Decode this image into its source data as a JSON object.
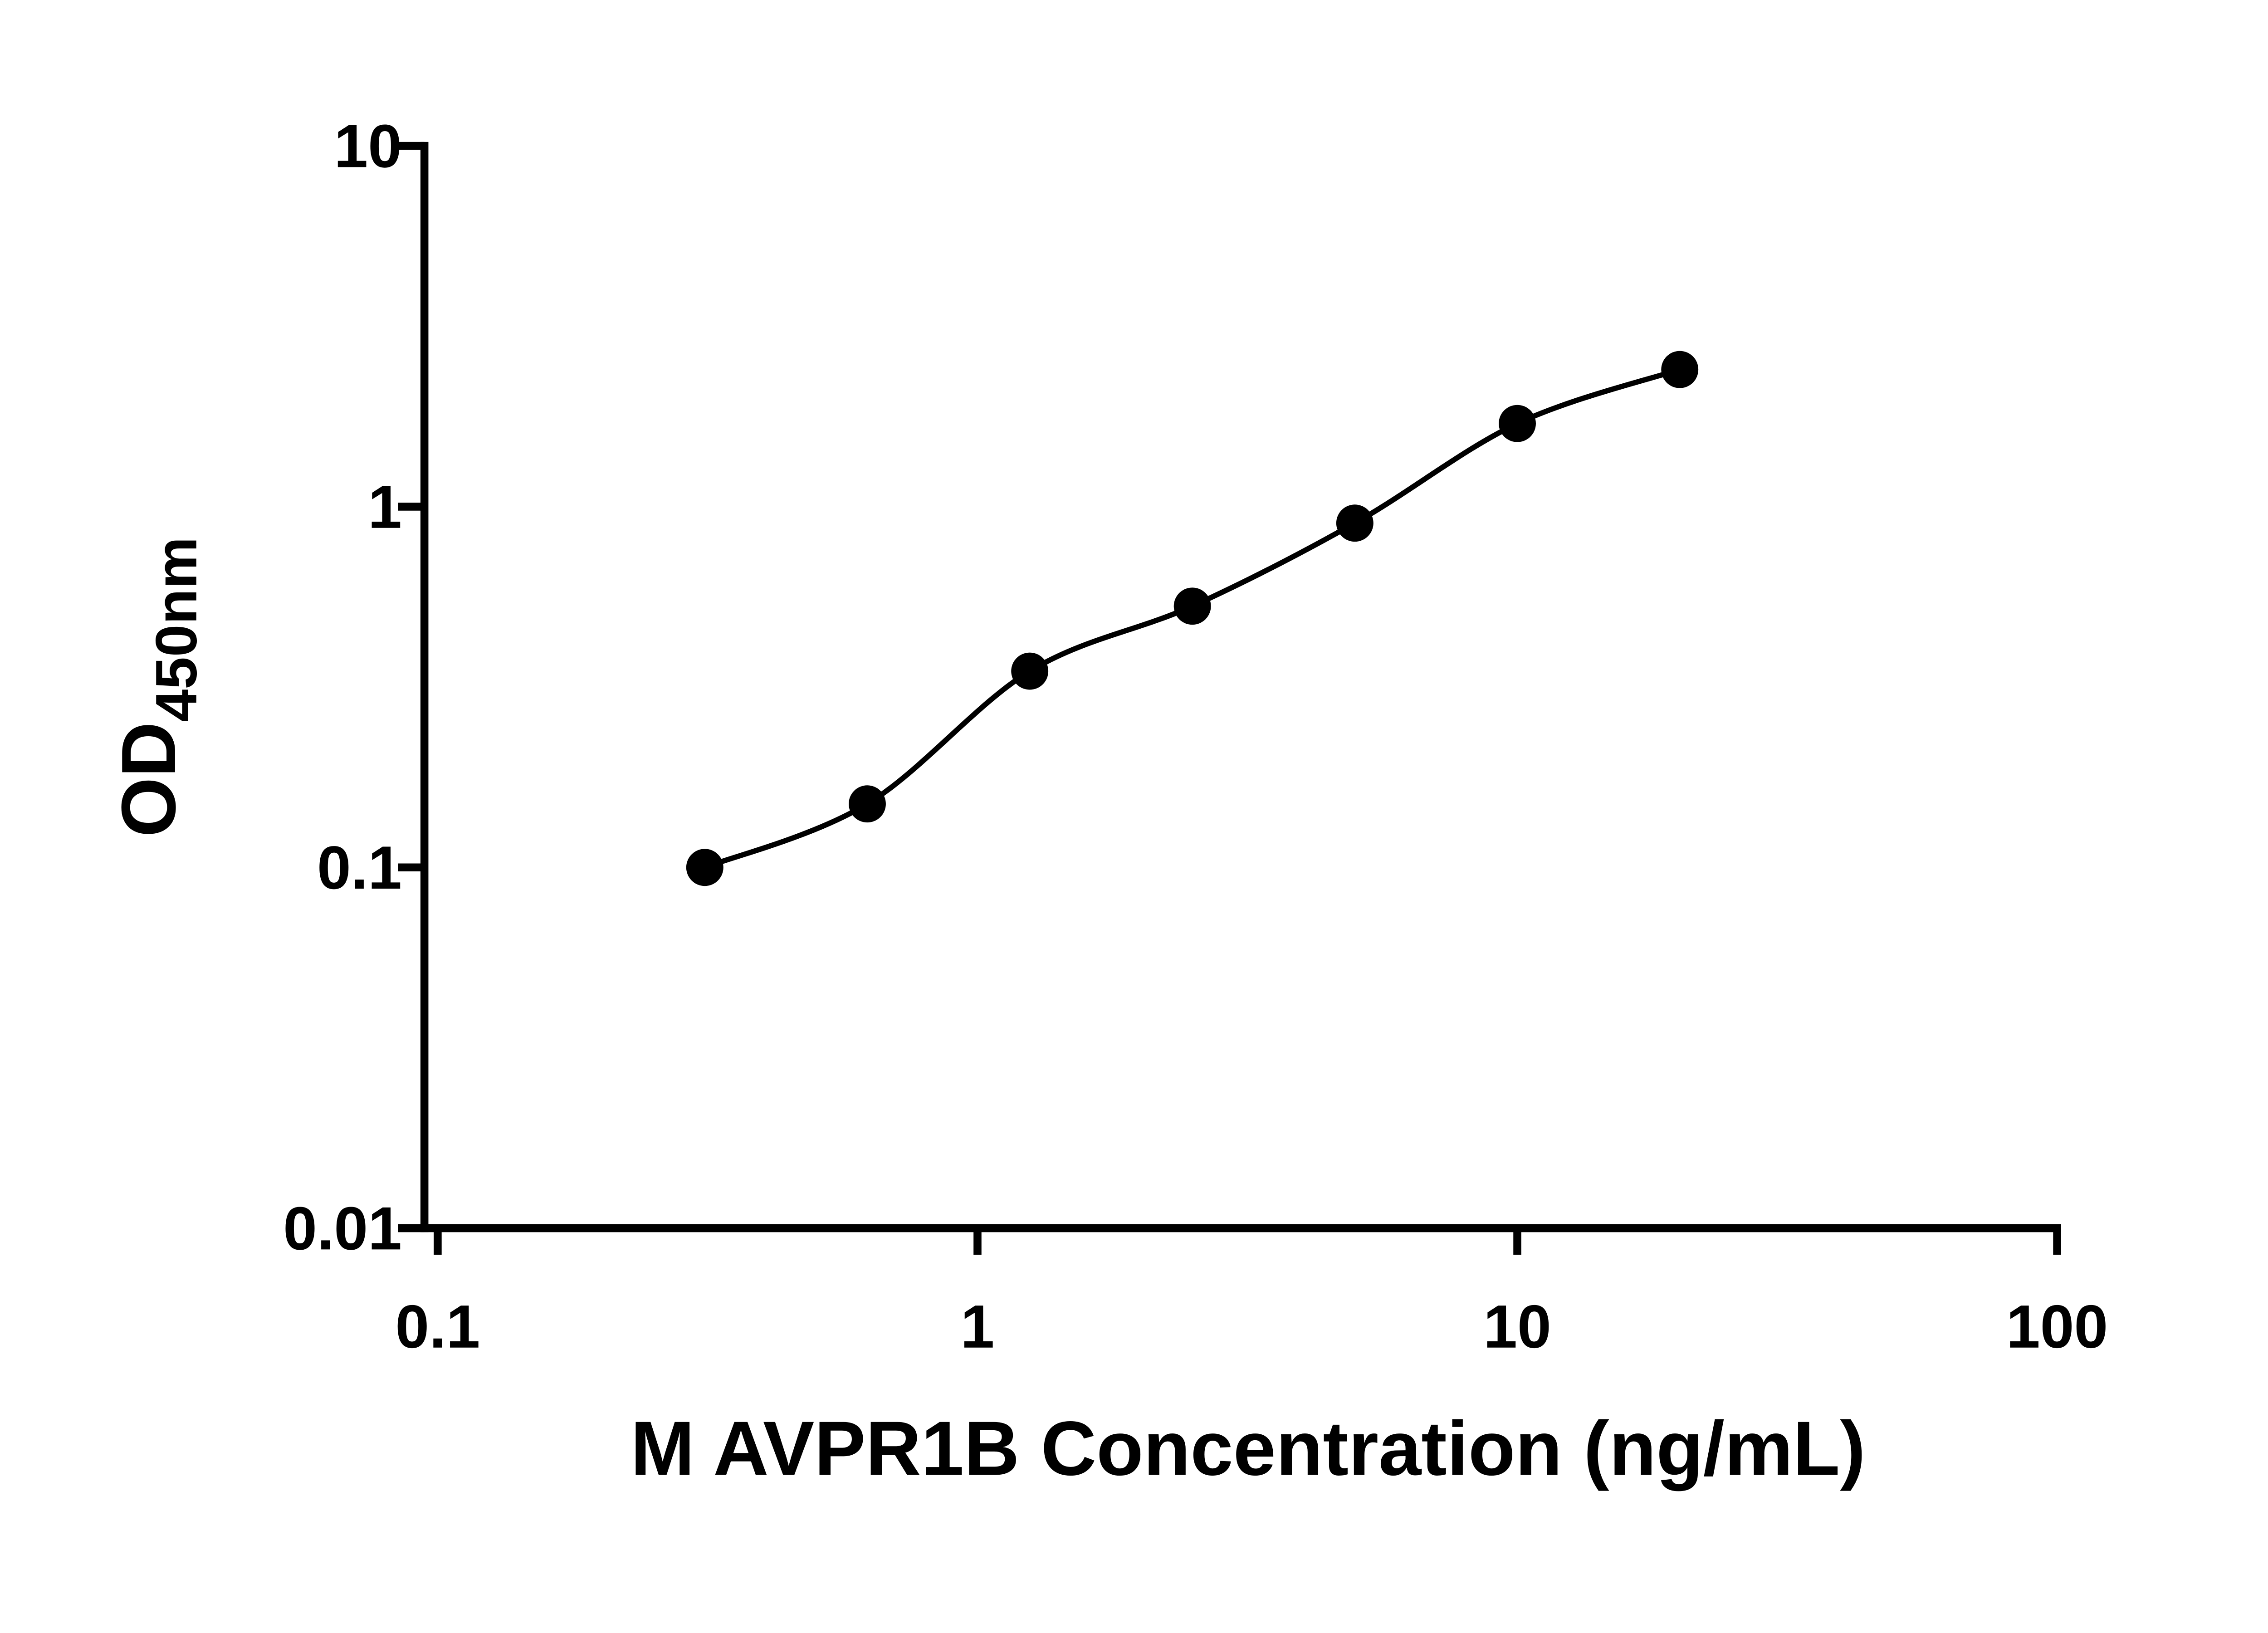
{
  "chart_data": {
    "type": "scatter",
    "title": "",
    "xlabel": "M AVPR1B Concentration (ng/mL)",
    "ylabel_main": "OD",
    "ylabel_sub": "450nm",
    "x_scale": "log",
    "y_scale": "log",
    "xlim": [
      0.1,
      100
    ],
    "ylim": [
      0.01,
      10
    ],
    "x_ticks": [
      0.1,
      1,
      10,
      100
    ],
    "x_tick_labels": [
      "0.1",
      "1",
      "10",
      "100"
    ],
    "y_ticks": [
      0.01,
      0.1,
      1,
      10
    ],
    "y_tick_labels": [
      "0.01",
      "0.1",
      "1",
      "10"
    ],
    "grid": false,
    "legend": "none",
    "background": "#ffffff",
    "axis_color": "#000000",
    "series": [
      {
        "x": [
          0.3125,
          0.625,
          1.25,
          2.5,
          5,
          10,
          20
        ],
        "y": [
          0.1,
          0.15,
          0.35,
          0.53,
          0.9,
          1.7,
          2.4
        ],
        "marker": "circle",
        "marker_color": "#000000",
        "line": "smooth",
        "line_color": "#000000"
      }
    ]
  }
}
